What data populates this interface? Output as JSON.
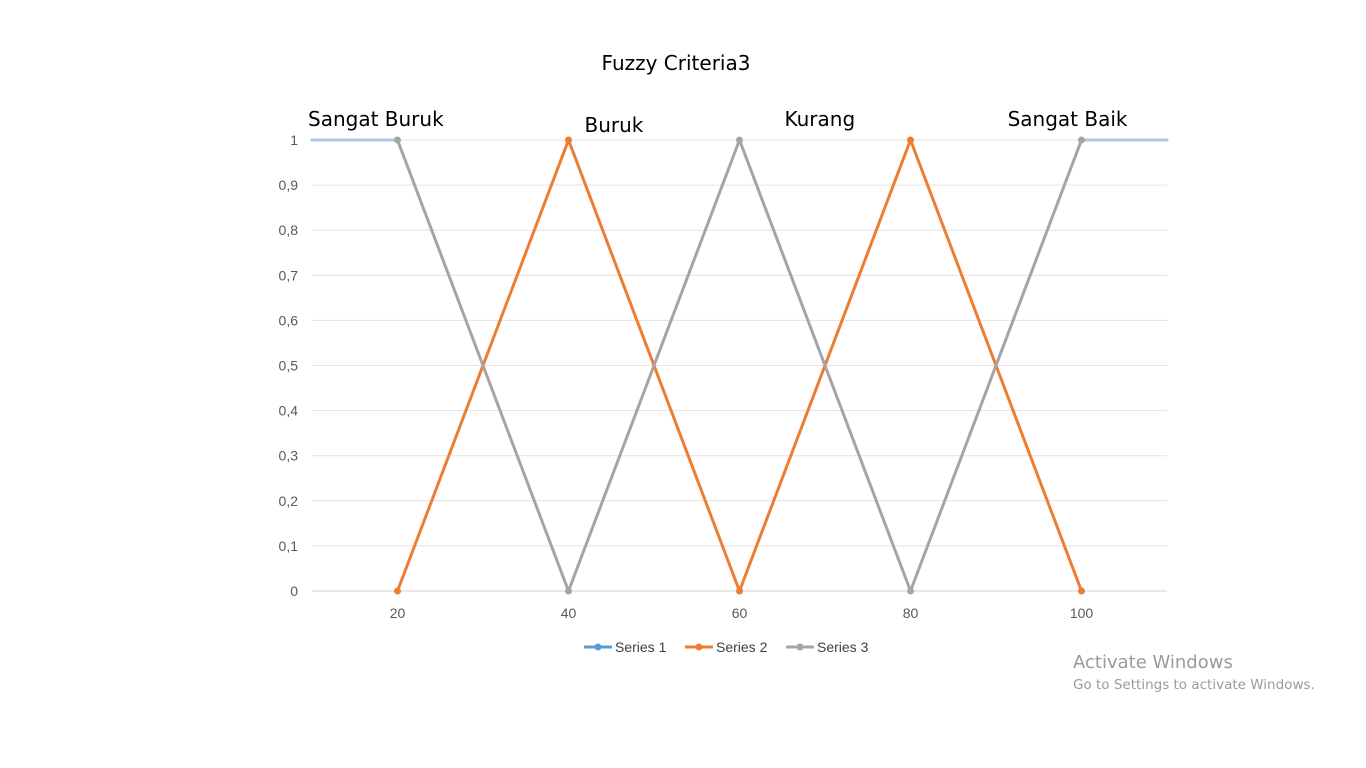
{
  "chart_data": {
    "type": "line",
    "title": "Fuzzy Criteria3",
    "xlabel": "",
    "ylabel": "",
    "x_ticks": [
      "20",
      "40",
      "60",
      "80",
      "100"
    ],
    "y_ticks": [
      "0",
      "0,1",
      "0,2",
      "0,3",
      "0,4",
      "0,5",
      "0,6",
      "0,7",
      "0,8",
      "0,9",
      "1"
    ],
    "xlim": [
      10,
      110
    ],
    "ylim": [
      0,
      1
    ],
    "grid": true,
    "legend_position": "bottom",
    "series": [
      {
        "name": "Series 1",
        "color": "#5b9bd5",
        "x": [],
        "y": []
      },
      {
        "name": "Series 2",
        "color": "#ed7d31",
        "x": [
          20,
          40,
          60,
          80,
          100
        ],
        "y": [
          0,
          1,
          0,
          1,
          0
        ]
      },
      {
        "name": "Series 3",
        "color": "#a5a5a5",
        "x": [
          20,
          40,
          60,
          80,
          100
        ],
        "y": [
          1,
          0,
          1,
          0,
          1
        ]
      }
    ],
    "overlay_lines": [
      {
        "color": "#aec6e8",
        "x": [
          10,
          20
        ],
        "y": [
          1,
          1
        ]
      },
      {
        "color": "#aec6e8",
        "x": [
          100,
          110
        ],
        "y": [
          1,
          1
        ]
      }
    ],
    "annotations": [
      {
        "text": "Sangat Buruk",
        "x": 10,
        "y": 1,
        "align": "start"
      },
      {
        "text": "Buruk",
        "x": 40,
        "y": 1,
        "align": "start"
      },
      {
        "text": "Kurang",
        "x": 60,
        "y": 1,
        "align": "start"
      },
      {
        "text": "Sangat Baik",
        "x": 100,
        "y": 1,
        "align": "end"
      }
    ]
  },
  "watermark": {
    "title": "Activate Windows",
    "subtitle": "Go to Settings to activate Windows."
  }
}
